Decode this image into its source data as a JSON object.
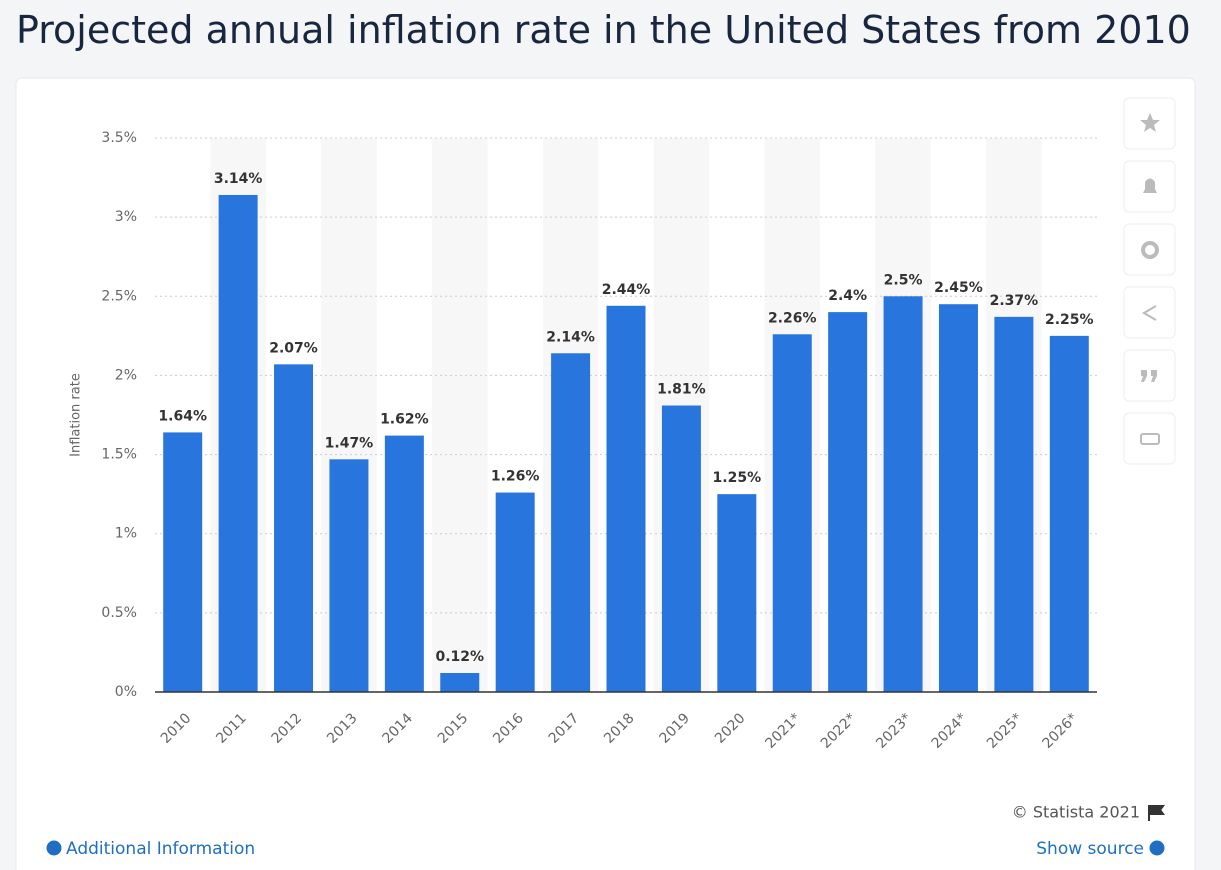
{
  "chart_data": {
    "type": "bar",
    "title": "Projected annual inflation rate in the United States from 2010",
    "y_label": "Inflation rate",
    "categories": [
      "2010",
      "2011",
      "2012",
      "2013",
      "2014",
      "2015",
      "2016",
      "2017",
      "2018",
      "2019",
      "2020",
      "2021*",
      "2022*",
      "2023*",
      "2024*",
      "2025*",
      "2026*"
    ],
    "values": [
      1.64,
      3.14,
      2.07,
      1.47,
      1.62,
      0.12,
      1.26,
      2.14,
      2.44,
      1.81,
      1.25,
      2.26,
      2.4,
      2.5,
      2.45,
      2.37,
      2.25
    ],
    "value_labels": [
      "1.64%",
      "3.14%",
      "2.07%",
      "1.47%",
      "1.62%",
      "0.12%",
      "1.26%",
      "2.14%",
      "2.44%",
      "1.81%",
      "1.25%",
      "2.26%",
      "2.4%",
      "2.5%",
      "2.45%",
      "2.37%",
      "2.25%"
    ],
    "color": "#2876dd",
    "ylim": [
      0,
      3.5
    ],
    "yticks": [
      {
        "value": 0,
        "label": "0%"
      },
      {
        "value": 0.5,
        "label": "0.5%"
      },
      {
        "value": 1,
        "label": "1%"
      },
      {
        "value": 1.5,
        "label": "1.5%"
      },
      {
        "value": 2,
        "label": "2%"
      },
      {
        "value": 2.5,
        "label": "2.5%"
      },
      {
        "value": 3,
        "label": "3%"
      },
      {
        "value": 3.5,
        "label": "3.5%"
      }
    ],
    "grid": true
  },
  "footer": {
    "credit": "© Statista 2021",
    "additional_info": "Additional Information",
    "show_source": "Show source"
  }
}
